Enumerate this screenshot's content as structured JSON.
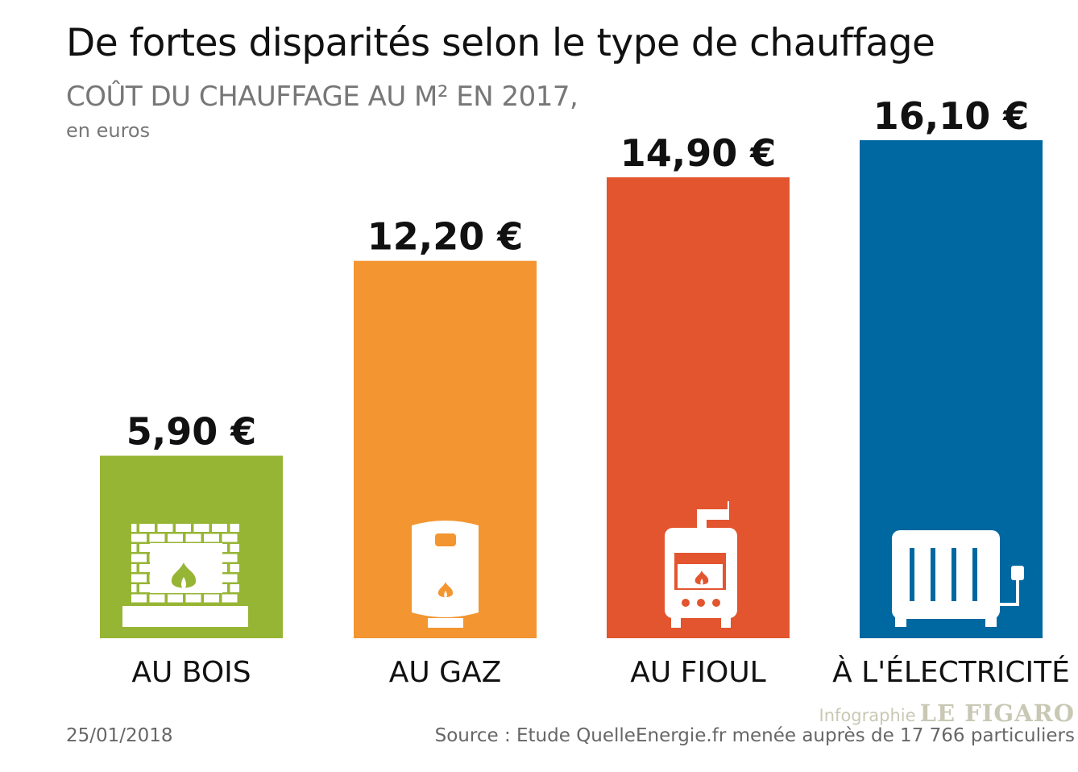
{
  "chart_data": {
    "type": "bar",
    "title": "De fortes disparités selon le type de chauffage",
    "subtitle": "COÛT DU CHAUFFAGE AU M² EN 2017,",
    "ylabel": "en euros",
    "categories": [
      "AU BOIS",
      "AU GAZ",
      "AU FIOUL",
      "À L'ÉLECTRICITÉ"
    ],
    "values": [
      5.9,
      12.2,
      14.9,
      16.1
    ],
    "value_labels": [
      "5,90 €",
      "12,20 €",
      "14,90 €",
      "16,10 €"
    ],
    "icons": [
      "fireplace-icon",
      "gas-water-heater-icon",
      "oil-boiler-icon",
      "electric-radiator-icon"
    ],
    "colors": [
      "#97b534",
      "#f39530",
      "#e2552e",
      "#0068a0"
    ],
    "ylim": [
      0,
      16.1
    ],
    "grid": false,
    "legend": "none"
  },
  "footer": {
    "date": "25/01/2018",
    "source": "Source : Etude QuelleEnergie.fr menée auprès de 17 766 particuliers",
    "credit_label": "Infographie",
    "brand": "LE FIGARO"
  }
}
